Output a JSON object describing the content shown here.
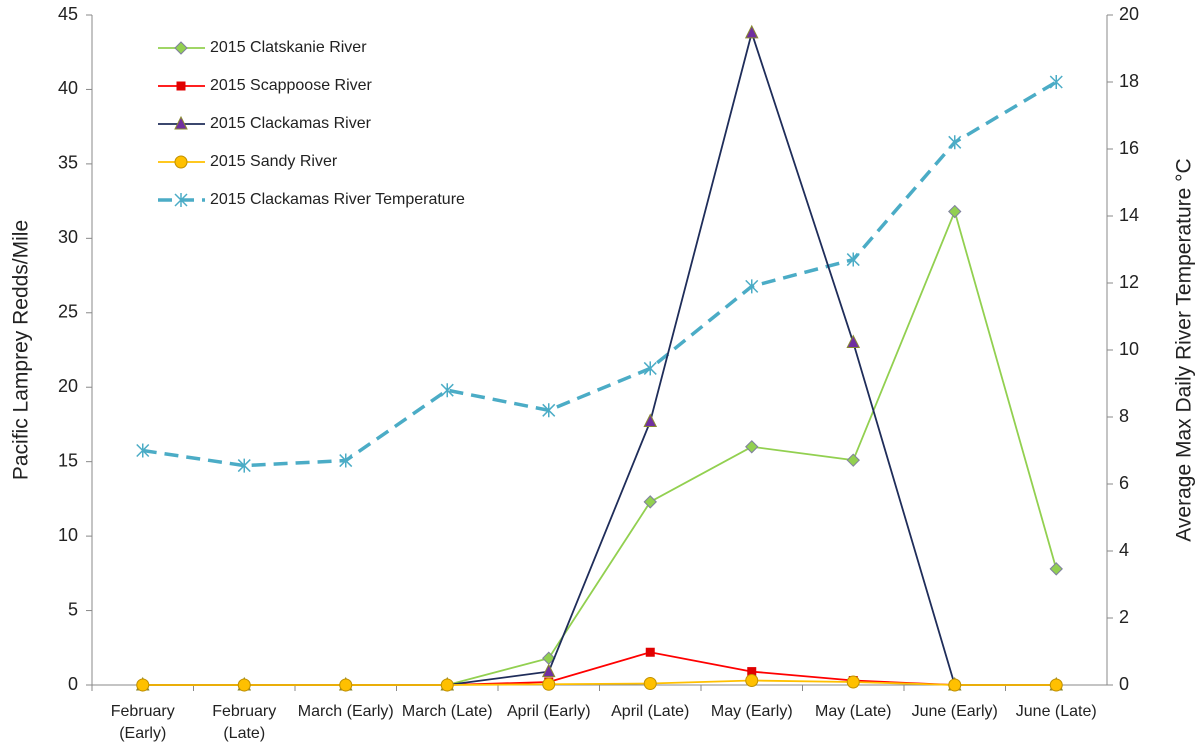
{
  "chart_data": {
    "type": "line",
    "y_label": "Pacific Lamprey Redds/Mile",
    "y2_label": "Average Max Daily River Temperature °C",
    "categories": [
      "February (Early)",
      "February (Late)",
      "March (Early)",
      "March (Late)",
      "April (Early)",
      "April (Late)",
      "May (Early)",
      "May (Late)",
      "June (Early)",
      "June (Late)"
    ],
    "ylim": [
      0,
      45
    ],
    "yticks": [
      0,
      5,
      10,
      15,
      20,
      25,
      30,
      35,
      40,
      45
    ],
    "y2lim": [
      0,
      20
    ],
    "y2ticks": [
      0,
      2,
      4,
      6,
      8,
      10,
      12,
      14,
      16,
      18,
      20
    ],
    "grid": false,
    "legend": "top-left",
    "series": [
      {
        "name": "2015 Clatskanie River",
        "color": "#92d050",
        "marker": "diamond",
        "marker_color": "#92d050",
        "values": [
          0,
          0,
          0,
          0,
          1.8,
          12.3,
          16,
          15.1,
          31.8,
          7.8
        ]
      },
      {
        "name": "2015 Scappoose River",
        "color": "#ff0000",
        "marker": "square",
        "marker_color": "#e00000",
        "values": [
          0,
          0,
          0,
          0,
          0.2,
          2.2,
          0.9,
          0.3,
          0,
          0
        ]
      },
      {
        "name": "2015 Clackamas River",
        "color": "#1f2d5a",
        "marker": "triangle",
        "marker_color": "#7030a0",
        "values": [
          0,
          0,
          0,
          0,
          0.9,
          17.7,
          43.8,
          23,
          0,
          0
        ]
      },
      {
        "name": "2015 Sandy River",
        "color": "#ffc000",
        "marker": "circle",
        "marker_color": "#ffc000",
        "values": [
          0,
          0,
          0,
          0,
          0.05,
          0.1,
          0.3,
          0.2,
          0,
          0
        ]
      },
      {
        "name": "2015 Clackamas River Temperature",
        "color": "#4bacc6",
        "marker": "star",
        "marker_color": "#4bacc6",
        "dashed": true,
        "axis": "y2",
        "values": [
          7.0,
          6.55,
          6.7,
          8.8,
          8.2,
          9.45,
          11.9,
          12.7,
          16.2,
          18.0
        ]
      }
    ]
  }
}
